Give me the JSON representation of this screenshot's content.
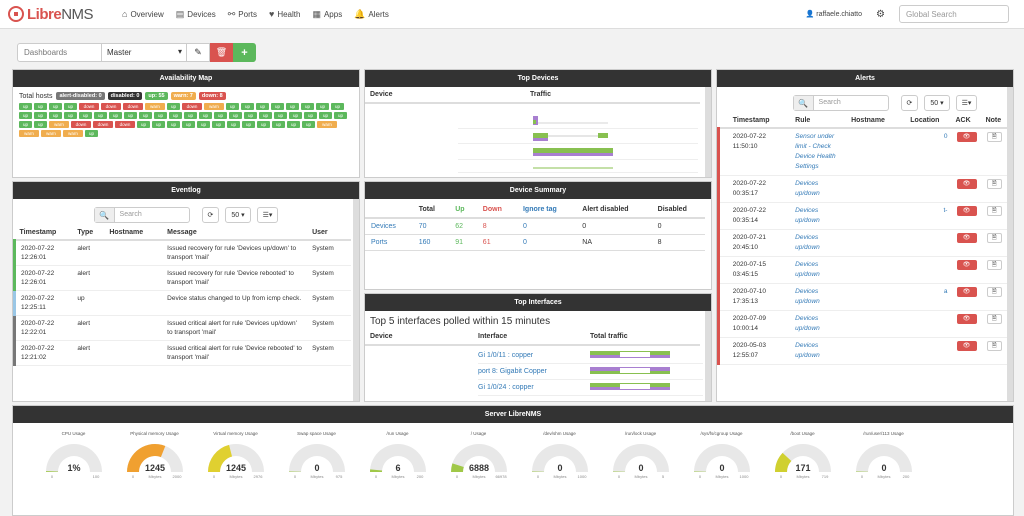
{
  "nav": {
    "logo_main": "Libre",
    "logo_sub": "NMS",
    "items": [
      {
        "icon": "⌂",
        "label": "Overview"
      },
      {
        "icon": "▤",
        "label": "Devices"
      },
      {
        "icon": "⚯",
        "label": "Ports"
      },
      {
        "icon": "♥",
        "label": "Health"
      },
      {
        "icon": "▦",
        "label": "Apps"
      },
      {
        "icon": "🔔",
        "label": "Alerts"
      }
    ],
    "user": "raffaele.chiatto",
    "search_placeholder": "Global Search"
  },
  "toolbar": {
    "dashboards_placeholder": "Dashboards",
    "selected": "Master",
    "edit_icon": "✎",
    "delete_icon": "🗑",
    "add_icon": "+"
  },
  "availability": {
    "title": "Availability Map",
    "total_label": "Total hosts",
    "badges": [
      {
        "t": "alert-disabled: 0",
        "c": "gray"
      },
      {
        "t": "disabled: 0",
        "c": "dark"
      },
      {
        "t": "up: 55",
        "c": "green"
      },
      {
        "t": "warn: 7",
        "c": "orange"
      },
      {
        "t": "down: 8",
        "c": "red"
      }
    ],
    "tiles": [
      "up",
      "up",
      "up",
      "up",
      "down",
      "down",
      "down",
      "warn",
      "up",
      "down",
      "warn",
      "up",
      "up",
      "up",
      "up",
      "up",
      "up",
      "up",
      "up",
      "up",
      "up",
      "up",
      "up",
      "up",
      "up",
      "up",
      "up",
      "up",
      "up",
      "up",
      "up",
      "up",
      "up",
      "up",
      "up",
      "up",
      "up",
      "up",
      "up",
      "up",
      "up",
      "up",
      "up",
      "warn",
      "down",
      "down",
      "down",
      "up",
      "up",
      "up",
      "up",
      "up",
      "up",
      "up",
      "up",
      "up",
      "up",
      "up",
      "up",
      "warn",
      "warn",
      "warn",
      "warn",
      "up"
    ]
  },
  "eventlog": {
    "title": "Eventlog",
    "search_placeholder": "Search",
    "page_size": "50 ▾",
    "cols": [
      "Timestamp",
      "Type",
      "Hostname",
      "Message",
      "User"
    ],
    "rows": [
      {
        "c": "gr",
        "ts": "2020-07-22 12:26:01",
        "type": "alert",
        "host": "",
        "msg": "Issued recovery for rule 'Devices up/down' to transport 'mail'",
        "user": "System"
      },
      {
        "c": "gr",
        "ts": "2020-07-22 12:26:01",
        "type": "alert",
        "host": "",
        "msg": "Issued recovery for rule 'Device rebooted' to transport 'mail'",
        "user": "System"
      },
      {
        "c": "bl",
        "ts": "2020-07-22 12:25:11",
        "type": "up",
        "host": "",
        "msg": "Device status changed to Up from icmp check.",
        "user": "System"
      },
      {
        "c": "gy",
        "ts": "2020-07-22 12:22:01",
        "type": "alert",
        "host": "",
        "msg": "Issued critical alert for rule 'Devices up/down' to transport 'mail'",
        "user": "System"
      },
      {
        "c": "gy",
        "ts": "2020-07-22 12:21:02",
        "type": "alert",
        "host": "",
        "msg": "Issued critical alert for rule 'Device rebooted' to transport 'mail'",
        "user": "System"
      }
    ]
  },
  "topdevices": {
    "title": "Top Devices",
    "cols": [
      "Device",
      "Traffic"
    ]
  },
  "summary": {
    "title": "Device Summary",
    "cols": [
      "",
      "Total",
      "Up",
      "Down",
      "Ignore tag",
      "Alert disabled",
      "Disabled"
    ],
    "rows": [
      {
        "name": "Devices",
        "total": "70",
        "up": "62",
        "down": "8",
        "ignore": "0",
        "alert": "0",
        "disabled": "0"
      },
      {
        "name": "Ports",
        "total": "160",
        "up": "91",
        "down": "61",
        "ignore": "0",
        "alert": "NA",
        "disabled": "8"
      }
    ]
  },
  "topinterfaces": {
    "title": "Top Interfaces",
    "subtitle": "Top 5 interfaces polled within 15 minutes",
    "cols": [
      "Device",
      "Interface",
      "Total traffic"
    ],
    "rows": [
      "Gi 1/0/11 : copper",
      "port 8: Gigabit Copper",
      "Gi 1/0/24 : copper"
    ]
  },
  "alerts": {
    "title": "Alerts",
    "search_placeholder": "Search",
    "page_size": "50 ▾",
    "cols": [
      "",
      "Timestamp",
      "Rule",
      "Hostname",
      "Location",
      "ACK",
      "Note"
    ],
    "rows": [
      {
        "ts": "2020-07-22 11:50:10",
        "rule": "Sensor under limit - Check Device Health Settings",
        "loc": "0"
      },
      {
        "ts": "2020-07-22 00:35:17",
        "rule": "Devices up/down",
        "loc": ""
      },
      {
        "ts": "2020-07-22 00:35:14",
        "rule": "Devices up/down",
        "loc": "t-"
      },
      {
        "ts": "2020-07-21 20:45:10",
        "rule": "Devices up/down",
        "loc": ""
      },
      {
        "ts": "2020-07-15 03:45:15",
        "rule": "Devices up/down",
        "loc": ""
      },
      {
        "ts": "2020-07-10 17:35:13",
        "rule": "Devices up/down",
        "loc": "a"
      },
      {
        "ts": "2020-07-09 10:00:14",
        "rule": "Devices up/down",
        "loc": ""
      },
      {
        "ts": "2020-05-03 12:55:07",
        "rule": "Devices up/down",
        "loc": ""
      }
    ]
  },
  "server": {
    "title": "Server LibreNMS",
    "gauges": [
      {
        "label": "CPU Usage",
        "value": "1%",
        "min": "0",
        "max": "100",
        "unit": "",
        "pct": 0.01,
        "color": "#a0c848"
      },
      {
        "label": "Physical memory Usage",
        "value": "1245",
        "min": "0",
        "max": "2000",
        "unit": "Mbytes",
        "pct": 0.62,
        "color": "#f0a030"
      },
      {
        "label": "Virtual memory Usage",
        "value": "1245",
        "min": "0",
        "max": "2976",
        "unit": "Mbytes",
        "pct": 0.42,
        "color": "#e0d030"
      },
      {
        "label": "Swap space Usage",
        "value": "0",
        "min": "0",
        "max": "975",
        "unit": "Mbytes",
        "pct": 0,
        "color": "#a0c848"
      },
      {
        "label": "/run Usage",
        "value": "6",
        "min": "0",
        "max": "200",
        "unit": "Mbytes",
        "pct": 0.03,
        "color": "#a0c848"
      },
      {
        "label": "/ Usage",
        "value": "6888",
        "min": "0",
        "max": "66978",
        "unit": "Mbytes",
        "pct": 0.1,
        "color": "#a0c848"
      },
      {
        "label": "/dev/shm Usage",
        "value": "0",
        "min": "0",
        "max": "1000",
        "unit": "Mbytes",
        "pct": 0,
        "color": "#a0c848"
      },
      {
        "label": "/run/lock Usage",
        "value": "0",
        "min": "0",
        "max": "5",
        "unit": "Mbytes",
        "pct": 0,
        "color": "#a0c848"
      },
      {
        "label": "/sys/fs/cgroup Usage",
        "value": "0",
        "min": "0",
        "max": "1000",
        "unit": "Mbytes",
        "pct": 0,
        "color": "#a0c848"
      },
      {
        "label": "/boot Usage",
        "value": "171",
        "min": "0",
        "max": "719",
        "unit": "Mbytes",
        "pct": 0.24,
        "color": "#d0d030"
      },
      {
        "label": "/run/user/113 Usage",
        "value": "0",
        "min": "0",
        "max": "200",
        "unit": "Mbytes",
        "pct": 0,
        "color": "#a0c848"
      }
    ]
  }
}
